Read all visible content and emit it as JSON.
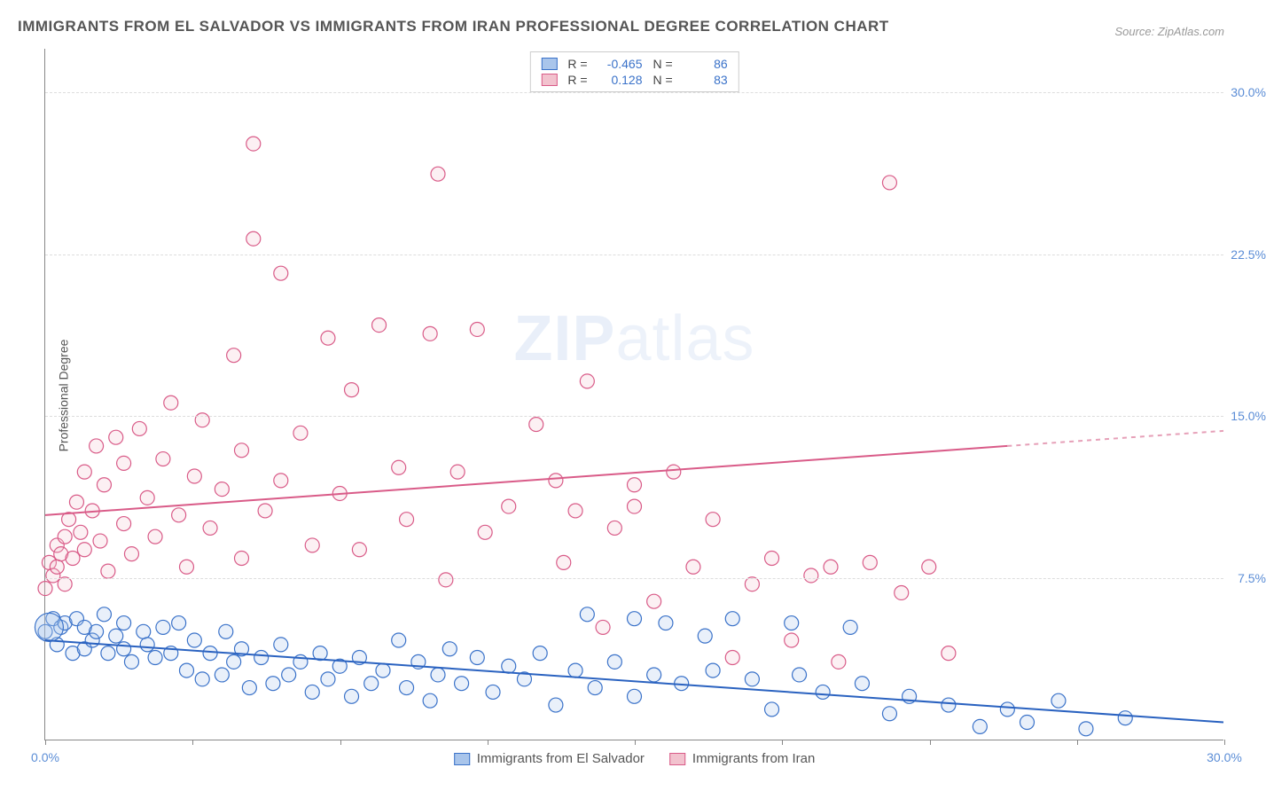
{
  "title": "IMMIGRANTS FROM EL SALVADOR VS IMMIGRANTS FROM IRAN PROFESSIONAL DEGREE CORRELATION CHART",
  "source": "Source: ZipAtlas.com",
  "ylabel": "Professional Degree",
  "watermark_a": "ZIP",
  "watermark_b": "atlas",
  "chart": {
    "type": "scatter",
    "background_color": "#ffffff",
    "grid_color": "#dddddd",
    "axis_color": "#888888",
    "text_color": "#555555",
    "tick_label_color": "#5b8dd6",
    "xlim": [
      0,
      30
    ],
    "ylim": [
      0,
      32
    ],
    "yticks": [
      7.5,
      15.0,
      22.5,
      30.0
    ],
    "ytick_labels": [
      "7.5%",
      "15.0%",
      "22.5%",
      "30.0%"
    ],
    "xtick_positions": [
      0,
      3.75,
      7.5,
      11.25,
      15.0,
      18.75,
      22.5,
      26.25,
      30.0
    ],
    "xtick_labels_shown": {
      "0": "0.0%",
      "30": "30.0%"
    },
    "marker_radius": 8,
    "marker_stroke_width": 1.2,
    "marker_fill_opacity": 0.25,
    "line_width": 2
  },
  "legend_top": [
    {
      "swatch_fill": "#a9c5eb",
      "swatch_stroke": "#3a72c9",
      "r_label": "R =",
      "r_val": "-0.465",
      "n_label": "N =",
      "n_val": "86"
    },
    {
      "swatch_fill": "#f2c2ce",
      "swatch_stroke": "#d95b88",
      "r_label": "R =",
      "r_val": "0.128",
      "n_label": "N =",
      "n_val": "83"
    }
  ],
  "legend_bottom": [
    {
      "swatch_fill": "#a9c5eb",
      "swatch_stroke": "#3a72c9",
      "label": "Immigrants from El Salvador"
    },
    {
      "swatch_fill": "#f2c2ce",
      "swatch_stroke": "#d95b88",
      "label": "Immigrants from Iran"
    }
  ],
  "series": {
    "el_salvador": {
      "color_stroke": "#3a72c9",
      "color_fill": "#a9c5eb",
      "trend": {
        "x1": 0,
        "y1": 4.6,
        "x2": 30,
        "y2": 0.8,
        "color": "#2a62c0"
      },
      "points": [
        [
          0.0,
          5.0
        ],
        [
          0.2,
          5.6
        ],
        [
          0.3,
          4.4
        ],
        [
          0.4,
          5.2
        ],
        [
          0.5,
          5.4
        ],
        [
          0.7,
          4.0
        ],
        [
          0.8,
          5.6
        ],
        [
          1.0,
          4.2
        ],
        [
          1.0,
          5.2
        ],
        [
          1.2,
          4.6
        ],
        [
          1.3,
          5.0
        ],
        [
          1.5,
          5.8
        ],
        [
          1.6,
          4.0
        ],
        [
          1.8,
          4.8
        ],
        [
          2.0,
          4.2
        ],
        [
          2.0,
          5.4
        ],
        [
          2.2,
          3.6
        ],
        [
          2.5,
          5.0
        ],
        [
          2.6,
          4.4
        ],
        [
          2.8,
          3.8
        ],
        [
          3.0,
          5.2
        ],
        [
          3.2,
          4.0
        ],
        [
          3.4,
          5.4
        ],
        [
          3.6,
          3.2
        ],
        [
          3.8,
          4.6
        ],
        [
          4.0,
          2.8
        ],
        [
          4.2,
          4.0
        ],
        [
          4.5,
          3.0
        ],
        [
          4.6,
          5.0
        ],
        [
          4.8,
          3.6
        ],
        [
          5.0,
          4.2
        ],
        [
          5.2,
          2.4
        ],
        [
          5.5,
          3.8
        ],
        [
          5.8,
          2.6
        ],
        [
          6.0,
          4.4
        ],
        [
          6.2,
          3.0
        ],
        [
          6.5,
          3.6
        ],
        [
          6.8,
          2.2
        ],
        [
          7.0,
          4.0
        ],
        [
          7.2,
          2.8
        ],
        [
          7.5,
          3.4
        ],
        [
          7.8,
          2.0
        ],
        [
          8.0,
          3.8
        ],
        [
          8.3,
          2.6
        ],
        [
          8.6,
          3.2
        ],
        [
          9.0,
          4.6
        ],
        [
          9.2,
          2.4
        ],
        [
          9.5,
          3.6
        ],
        [
          9.8,
          1.8
        ],
        [
          10.0,
          3.0
        ],
        [
          10.3,
          4.2
        ],
        [
          10.6,
          2.6
        ],
        [
          11.0,
          3.8
        ],
        [
          11.4,
          2.2
        ],
        [
          11.8,
          3.4
        ],
        [
          12.2,
          2.8
        ],
        [
          12.6,
          4.0
        ],
        [
          13.0,
          1.6
        ],
        [
          13.5,
          3.2
        ],
        [
          13.8,
          5.8
        ],
        [
          14.0,
          2.4
        ],
        [
          14.5,
          3.6
        ],
        [
          15.0,
          5.6
        ],
        [
          15.0,
          2.0
        ],
        [
          15.5,
          3.0
        ],
        [
          15.8,
          5.4
        ],
        [
          16.2,
          2.6
        ],
        [
          16.8,
          4.8
        ],
        [
          17.0,
          3.2
        ],
        [
          17.5,
          5.6
        ],
        [
          18.0,
          2.8
        ],
        [
          18.5,
          1.4
        ],
        [
          19.0,
          5.4
        ],
        [
          19.2,
          3.0
        ],
        [
          19.8,
          2.2
        ],
        [
          20.5,
          5.2
        ],
        [
          20.8,
          2.6
        ],
        [
          21.5,
          1.2
        ],
        [
          22.0,
          2.0
        ],
        [
          23.0,
          1.6
        ],
        [
          23.8,
          0.6
        ],
        [
          24.5,
          1.4
        ],
        [
          25.0,
          0.8
        ],
        [
          25.8,
          1.8
        ],
        [
          26.5,
          0.5
        ],
        [
          27.5,
          1.0
        ]
      ]
    },
    "iran": {
      "color_stroke": "#d95b88",
      "color_fill": "#f2c2ce",
      "trend_solid": {
        "x1": 0,
        "y1": 10.4,
        "x2": 24.5,
        "y2": 13.6,
        "color": "#d95b88"
      },
      "trend_dashed": {
        "x1": 24.5,
        "y1": 13.6,
        "x2": 30,
        "y2": 14.3,
        "color": "#e6a0b8"
      },
      "points": [
        [
          0.0,
          7.0
        ],
        [
          0.1,
          8.2
        ],
        [
          0.2,
          7.6
        ],
        [
          0.3,
          9.0
        ],
        [
          0.3,
          8.0
        ],
        [
          0.4,
          8.6
        ],
        [
          0.5,
          7.2
        ],
        [
          0.5,
          9.4
        ],
        [
          0.6,
          10.2
        ],
        [
          0.7,
          8.4
        ],
        [
          0.8,
          11.0
        ],
        [
          0.9,
          9.6
        ],
        [
          1.0,
          8.8
        ],
        [
          1.0,
          12.4
        ],
        [
          1.2,
          10.6
        ],
        [
          1.3,
          13.6
        ],
        [
          1.4,
          9.2
        ],
        [
          1.5,
          11.8
        ],
        [
          1.6,
          7.8
        ],
        [
          1.8,
          14.0
        ],
        [
          2.0,
          10.0
        ],
        [
          2.0,
          12.8
        ],
        [
          2.2,
          8.6
        ],
        [
          2.4,
          14.4
        ],
        [
          2.6,
          11.2
        ],
        [
          2.8,
          9.4
        ],
        [
          3.0,
          13.0
        ],
        [
          3.2,
          15.6
        ],
        [
          3.4,
          10.4
        ],
        [
          3.6,
          8.0
        ],
        [
          3.8,
          12.2
        ],
        [
          4.0,
          14.8
        ],
        [
          4.2,
          9.8
        ],
        [
          4.5,
          11.6
        ],
        [
          4.8,
          17.8
        ],
        [
          5.0,
          8.4
        ],
        [
          5.0,
          13.4
        ],
        [
          5.3,
          23.2
        ],
        [
          5.3,
          27.6
        ],
        [
          5.6,
          10.6
        ],
        [
          6.0,
          21.6
        ],
        [
          6.0,
          12.0
        ],
        [
          6.5,
          14.2
        ],
        [
          6.8,
          9.0
        ],
        [
          7.2,
          18.6
        ],
        [
          7.5,
          11.4
        ],
        [
          7.8,
          16.2
        ],
        [
          8.0,
          8.8
        ],
        [
          8.5,
          19.2
        ],
        [
          9.0,
          12.6
        ],
        [
          9.2,
          10.2
        ],
        [
          9.8,
          18.8
        ],
        [
          10.0,
          26.2
        ],
        [
          10.2,
          7.4
        ],
        [
          10.5,
          12.4
        ],
        [
          11.0,
          19.0
        ],
        [
          11.2,
          9.6
        ],
        [
          11.8,
          10.8
        ],
        [
          12.5,
          14.6
        ],
        [
          13.0,
          12.0
        ],
        [
          13.2,
          8.2
        ],
        [
          13.5,
          10.6
        ],
        [
          13.8,
          16.6
        ],
        [
          14.2,
          5.2
        ],
        [
          14.5,
          9.8
        ],
        [
          15.0,
          10.8
        ],
        [
          15.0,
          11.8
        ],
        [
          15.5,
          6.4
        ],
        [
          16.0,
          12.4
        ],
        [
          16.5,
          8.0
        ],
        [
          17.0,
          10.2
        ],
        [
          17.5,
          3.8
        ],
        [
          18.0,
          7.2
        ],
        [
          18.5,
          8.4
        ],
        [
          19.0,
          4.6
        ],
        [
          19.5,
          7.6
        ],
        [
          20.0,
          8.0
        ],
        [
          20.2,
          3.6
        ],
        [
          21.0,
          8.2
        ],
        [
          21.5,
          25.8
        ],
        [
          21.8,
          6.8
        ],
        [
          22.5,
          8.0
        ],
        [
          23.0,
          4.0
        ]
      ]
    }
  }
}
